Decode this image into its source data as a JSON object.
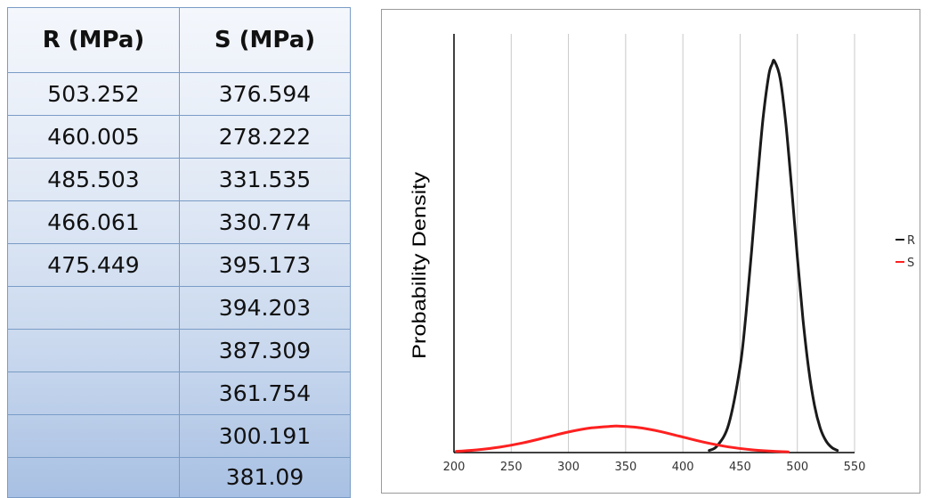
{
  "table": {
    "headers": [
      "R (MPa)",
      "S (MPa)"
    ],
    "rows": [
      [
        "503.252",
        "376.594"
      ],
      [
        "460.005",
        "278.222"
      ],
      [
        "485.503",
        "331.535"
      ],
      [
        "466.061",
        "330.774"
      ],
      [
        "475.449",
        "395.173"
      ],
      [
        "",
        "394.203"
      ],
      [
        "",
        "387.309"
      ],
      [
        "",
        "361.754"
      ],
      [
        "",
        "300.191"
      ],
      [
        "",
        "381.09"
      ]
    ]
  },
  "chart_data": {
    "type": "line",
    "title": "",
    "xlabel": "",
    "ylabel": "Probability Density",
    "xlim": [
      200,
      550
    ],
    "xticks": [
      "200",
      "250",
      "300",
      "350",
      "400",
      "450",
      "500",
      "550"
    ],
    "grid": "vertical",
    "legend_position": "right",
    "series": [
      {
        "name": "R",
        "color": "#1a1a1a",
        "x": [
          423,
          430,
          440,
          450,
          455,
          460,
          465,
          470,
          475,
          478,
          480,
          485,
          490,
          495,
          500,
          505,
          510,
          515,
          520,
          525,
          530,
          535
        ],
        "y": [
          0.0016,
          0.005,
          0.0209,
          0.0635,
          0.1015,
          0.1489,
          0.2003,
          0.2469,
          0.2793,
          0.2876,
          0.2898,
          0.277,
          0.2432,
          0.196,
          0.145,
          0.0983,
          0.0612,
          0.0349,
          0.0182,
          0.0087,
          0.0038,
          0.0016
        ]
      },
      {
        "name": "S",
        "color": "#ff2020",
        "x": [
          202,
          220,
          240,
          260,
          280,
          300,
          320,
          340,
          343,
          360,
          380,
          400,
          420,
          440,
          460,
          480,
          492
        ],
        "y": [
          0.00091,
          0.00197,
          0.004,
          0.00713,
          0.01112,
          0.01522,
          0.01827,
          0.01956,
          0.01958,
          0.01861,
          0.0156,
          0.01147,
          0.00739,
          0.00418,
          0.00207,
          0.0009,
          0.00051
        ]
      }
    ]
  }
}
